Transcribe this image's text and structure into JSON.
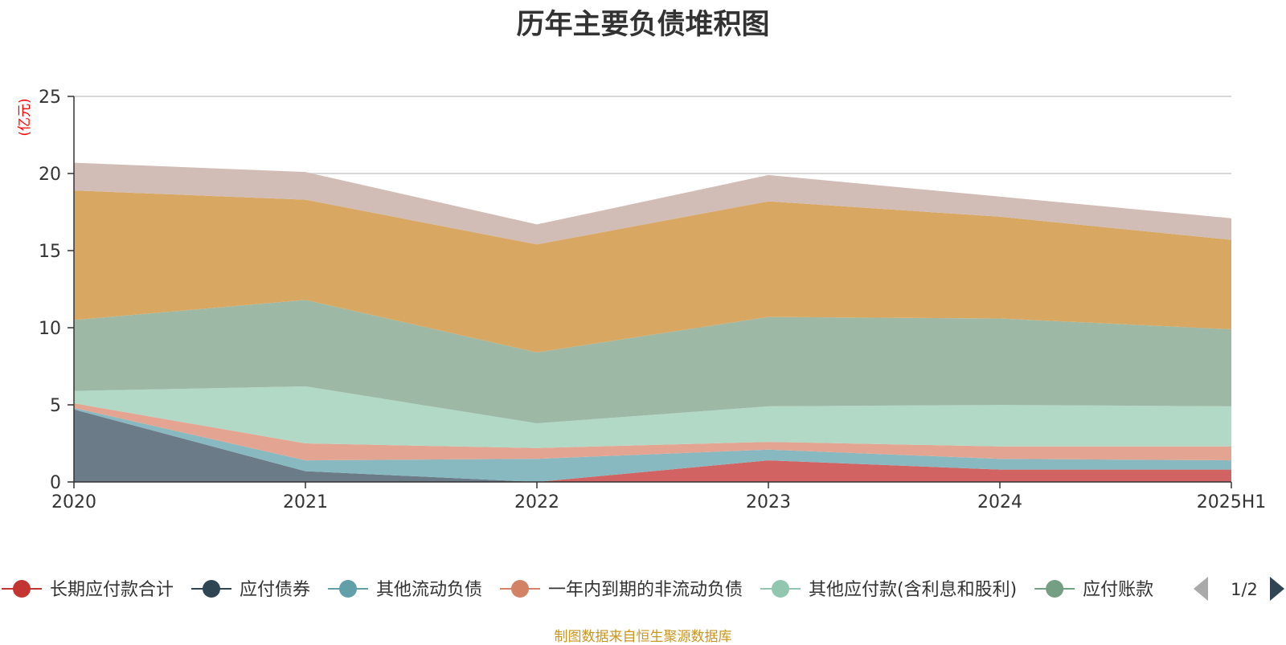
{
  "chart_data": {
    "type": "area",
    "stacked": true,
    "title": "历年主要负债堆积图",
    "y_unit_label": "(亿元)",
    "ylim": [
      0,
      25
    ],
    "y_ticks": [
      "0",
      "5",
      "10",
      "15",
      "20",
      "25"
    ],
    "categories": [
      "2020",
      "2021",
      "2022",
      "2023",
      "2024",
      "2025H1"
    ],
    "grid": true,
    "series": [
      {
        "name": "长期应付款合计",
        "color": "#d16362",
        "values": [
          0,
          0,
          0,
          1.4,
          0.8,
          0.8
        ]
      },
      {
        "name": "应付债券",
        "color": "#6b7b87",
        "values": [
          4.7,
          0.7,
          0,
          0,
          0,
          0
        ]
      },
      {
        "name": "其他流动负债",
        "color": "#88b9c1",
        "values": [
          0.1,
          0.7,
          1.5,
          0.7,
          0.7,
          0.6
        ]
      },
      {
        "name": "一年内到期的非流动负债",
        "color": "#e3a592",
        "values": [
          0.3,
          1.1,
          0.7,
          0.5,
          0.8,
          0.9
        ]
      },
      {
        "name": "其他应付款(含利息和股利)",
        "color": "#b2d8c6",
        "values": [
          0.8,
          3.7,
          1.6,
          2.3,
          2.7,
          2.6
        ]
      },
      {
        "name": "应付账款",
        "color": "#9db9a6",
        "values": [
          4.6,
          5.6,
          4.6,
          5.8,
          5.6,
          5.0
        ]
      },
      {
        "name": "",
        "color": "#d8a862",
        "values": [
          8.4,
          6.5,
          7.0,
          7.5,
          6.6,
          5.8
        ]
      },
      {
        "name": "",
        "color": "#d2bcb6",
        "values": [
          1.8,
          1.8,
          1.3,
          1.7,
          1.3,
          1.4
        ]
      }
    ],
    "legend": {
      "position": "bottom",
      "items": [
        {
          "label": "长期应付款合计",
          "color": "#c23531"
        },
        {
          "label": "应付债券",
          "color": "#2f4554"
        },
        {
          "label": "其他流动负债",
          "color": "#61a0a8"
        },
        {
          "label": "一年内到期的非流动负债",
          "color": "#d48265"
        },
        {
          "label": "其他应付款(含利息和股利)",
          "color": "#91c7ae"
        },
        {
          "label": "应付账款",
          "color": "#749f83"
        }
      ],
      "page": "1/2"
    }
  },
  "footer": {
    "source": "制图数据来自恒生聚源数据库"
  }
}
